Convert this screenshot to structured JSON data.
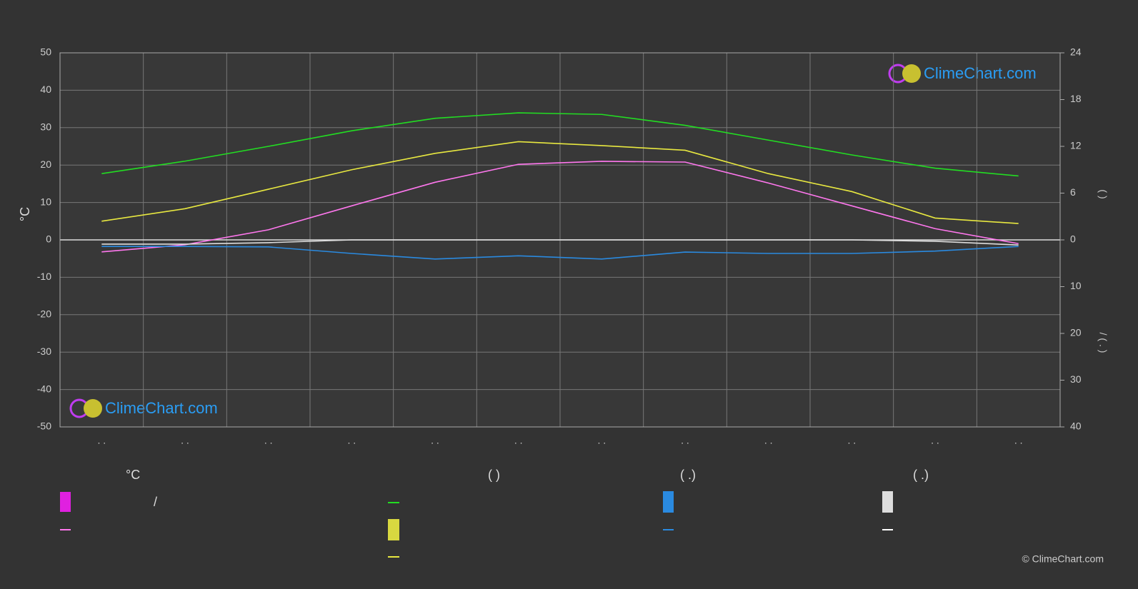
{
  "chart_data": {
    "type": "line",
    "categories": [
      ". .",
      ". .",
      ". .",
      ". .",
      ". .",
      ". .",
      ". .",
      ". .",
      ". .",
      ". .",
      ". .",
      ". ."
    ],
    "y_label": "°C",
    "y2_label": "(   )",
    "y3_label": "/   (  .  )",
    "ylim": [
      -50,
      50
    ],
    "yticks": [
      -50,
      -40,
      -30,
      -20,
      -10,
      0,
      10,
      20,
      30,
      40,
      50
    ],
    "y2lim": [
      0,
      24
    ],
    "y2ticks": [
      0,
      6,
      12,
      18,
      24
    ],
    "y3lim": [
      0,
      40
    ],
    "y3ticks": [
      0,
      10,
      20,
      30,
      40
    ],
    "grid": true,
    "series": [
      {
        "color": "#22dd22",
        "axis": "y2",
        "values": [
          8.5,
          10.1,
          12.0,
          14.0,
          15.6,
          16.3,
          16.1,
          14.7,
          12.8,
          10.9,
          9.2,
          8.2
        ]
      },
      {
        "color": "#e8e840",
        "axis": "y2",
        "values": [
          2.4,
          4.0,
          6.5,
          9.0,
          11.1,
          12.6,
          12.1,
          11.5,
          8.5,
          6.2,
          2.8,
          2.1
        ]
      },
      {
        "color": "#ff77ee",
        "axis": "y",
        "values": [
          -3.2,
          -1.3,
          2.7,
          9.1,
          15.4,
          20.2,
          21.0,
          20.8,
          15.2,
          9.1,
          3.0,
          -1.0
        ]
      },
      {
        "color": "#2a8ae0",
        "axis": "y3",
        "values": [
          1.4,
          1.4,
          1.5,
          2.9,
          4.1,
          3.4,
          4.1,
          2.6,
          2.9,
          2.9,
          2.4,
          1.4
        ]
      },
      {
        "color": "#dddddd",
        "axis": "y3",
        "values": [
          0.9,
          0.9,
          0.6,
          0,
          0,
          0,
          0,
          0,
          0,
          0,
          0.3,
          1.1
        ]
      }
    ]
  },
  "legend": {
    "headers": [
      "°C",
      "(          )",
      "(   .)",
      "(   .)"
    ],
    "item": "/"
  },
  "logo": "ClimeChart.com",
  "copyright": "© ClimeChart.com"
}
